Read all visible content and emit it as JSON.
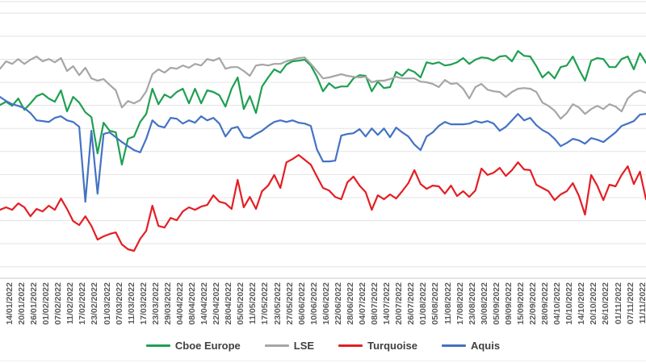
{
  "chart_data": {
    "type": "line",
    "title": "",
    "y_axis_visible": false,
    "ylim": [
      0,
      12
    ],
    "grid": "horizontal",
    "gridline_values": [
      0.5,
      1.5,
      2.5,
      3.5,
      4.5,
      5.5,
      6.5,
      7.5,
      8.5,
      9.5,
      10.5,
      11.5,
      12
    ],
    "axis_note": "y-axis labels cropped out of frame; values estimated in gridline units (1 unit per gridline above baseline)",
    "legend_position": "bottom",
    "x_labels": [
      "14/01/2022",
      "20/01/2022",
      "26/01/2022",
      "01/02/2022",
      "07/02/2022",
      "11/02/2022",
      "17/02/2022",
      "23/02/2022",
      "01/03/2022",
      "07/03/2022",
      "11/03/2022",
      "17/03/2022",
      "23/03/2022",
      "29/03/2022",
      "04/04/2022",
      "08/04/2022",
      "14/04/2022",
      "22/04/2022",
      "28/04/2022",
      "05/05/2022",
      "11/05/2022",
      "17/05/2022",
      "23/05/2022",
      "27/05/2022",
      "06/06/2022",
      "10/06/2022",
      "16/06/2022",
      "22/06/2022",
      "28/06/2022",
      "04/07/2022",
      "08/07/2022",
      "14/07/2022",
      "20/07/2022",
      "26/07/2022",
      "01/08/2022",
      "05/08/2022",
      "11/08/2022",
      "17/08/2022",
      "23/08/2022",
      "30/08/2022",
      "05/09/2022",
      "09/09/2022",
      "15/09/2022",
      "22/09/2022",
      "28/09/2022",
      "04/10/2022",
      "10/10/2022",
      "14/10/2022",
      "20/10/2022",
      "26/10/2022",
      "01/11/2022",
      "07/11/2022",
      "11/11/2022"
    ],
    "series": [
      {
        "name": "Cboe Europe",
        "color": "#1ea050",
        "values": [
          7.52,
          7.66,
          7.48,
          7.8,
          7.31,
          7.59,
          7.9,
          8.01,
          7.8,
          7.66,
          8.15,
          7.24,
          7.87,
          7.62,
          7.2,
          6.99,
          5.42,
          6.75,
          6.4,
          6.33,
          4.93,
          6.05,
          6.15,
          6.78,
          7.13,
          8.22,
          7.55,
          7.97,
          7.83,
          8.08,
          8.22,
          7.59,
          8.22,
          7.59,
          8.15,
          8.08,
          7.94,
          7.45,
          8.22,
          8.71,
          7.34,
          7.9,
          7.17,
          8.32,
          8.71,
          9.06,
          8.92,
          9.27,
          9.41,
          9.44,
          9.48,
          9.23,
          8.74,
          8.11,
          8.46,
          8.25,
          8.32,
          8.32,
          8.67,
          8.81,
          8.78,
          8.11,
          8.53,
          8.25,
          8.29,
          8.95,
          8.78,
          9.06,
          8.95,
          8.71,
          9.37,
          9.3,
          9.37,
          9.23,
          9.27,
          9.37,
          9.55,
          9.3,
          9.48,
          9.58,
          9.55,
          9.44,
          9.62,
          9.65,
          9.41,
          9.86,
          9.65,
          9.62,
          9.2,
          8.71,
          8.95,
          8.67,
          9.16,
          9.23,
          9.62,
          9.06,
          8.57,
          9.44,
          9.55,
          9.51,
          9.16,
          9.16,
          9.51,
          9.62,
          9.06,
          9.76,
          9.34
        ]
      },
      {
        "name": "LSE",
        "color": "#a6a6a6",
        "values": [
          9.09,
          9.41,
          9.3,
          9.51,
          9.3,
          9.48,
          9.62,
          9.41,
          9.51,
          9.37,
          9.55,
          8.99,
          9.2,
          8.81,
          9.13,
          8.67,
          8.57,
          8.64,
          8.39,
          8.15,
          7.41,
          7.69,
          7.59,
          7.73,
          8.11,
          8.85,
          9.06,
          8.92,
          9.13,
          9.09,
          9.23,
          9.13,
          9.3,
          9.23,
          9.51,
          9.44,
          9.55,
          9.09,
          9.16,
          9.16,
          8.99,
          8.78,
          9.23,
          9.27,
          9.23,
          9.3,
          9.3,
          9.41,
          9.48,
          9.55,
          9.58,
          9.3,
          8.99,
          8.67,
          8.71,
          8.78,
          8.85,
          8.78,
          8.74,
          8.71,
          8.74,
          8.5,
          8.57,
          8.57,
          8.64,
          8.74,
          8.67,
          8.67,
          8.67,
          8.53,
          8.5,
          8.43,
          8.29,
          8.6,
          8.43,
          8.46,
          8.22,
          7.8,
          8.29,
          8.43,
          8.18,
          8.11,
          8.08,
          7.87,
          8.08,
          8.22,
          8.25,
          8.22,
          8.08,
          7.62,
          7.48,
          7.27,
          6.92,
          7.17,
          7.55,
          7.41,
          7.13,
          7.34,
          7.48,
          7.34,
          7.55,
          7.45,
          7.24,
          7.8,
          8.04,
          8.15,
          8.04
        ]
      },
      {
        "name": "Turquoise",
        "color": "#e41e25",
        "values": [
          2.97,
          3.08,
          2.97,
          3.25,
          3.08,
          2.69,
          3.01,
          2.9,
          3.15,
          2.97,
          3.46,
          3.01,
          2.48,
          2.31,
          2.69,
          2.27,
          1.68,
          1.82,
          1.92,
          1.99,
          1.47,
          1.26,
          1.19,
          1.71,
          2.06,
          3.15,
          2.27,
          2.2,
          2.62,
          2.52,
          2.9,
          3.08,
          2.97,
          3.11,
          3.18,
          3.6,
          3.32,
          3.25,
          3.01,
          4.27,
          3.08,
          3.53,
          3.01,
          3.78,
          4.02,
          4.48,
          3.92,
          5.03,
          5.17,
          5.35,
          5.14,
          4.93,
          4.41,
          3.92,
          3.81,
          3.53,
          3.43,
          4.16,
          4.41,
          4.02,
          3.74,
          2.97,
          3.6,
          3.43,
          3.64,
          3.46,
          3.78,
          4.13,
          4.69,
          4.09,
          3.88,
          4.02,
          3.99,
          3.67,
          4.02,
          3.57,
          3.78,
          3.53,
          3.81,
          4.76,
          4.48,
          4.58,
          4.79,
          4.44,
          4.69,
          5.03,
          4.72,
          4.69,
          4.06,
          3.92,
          3.78,
          3.39,
          3.64,
          3.78,
          4.13,
          3.57,
          2.76,
          4.48,
          4.02,
          3.39,
          4.06,
          3.99,
          4.48,
          4.86,
          4.09,
          4.62,
          3.43
        ]
      },
      {
        "name": "Aquis",
        "color": "#4472c4",
        "values": [
          7.87,
          7.69,
          7.55,
          7.48,
          7.38,
          7.17,
          6.85,
          6.82,
          6.78,
          6.96,
          7.03,
          6.85,
          6.78,
          6.57,
          3.32,
          6.4,
          3.67,
          6.26,
          6.33,
          6.12,
          5.91,
          5.73,
          5.56,
          5.46,
          6.05,
          6.85,
          6.61,
          6.54,
          6.96,
          6.92,
          6.71,
          6.85,
          6.75,
          7.03,
          6.85,
          6.96,
          6.71,
          6.15,
          6.5,
          6.57,
          6.12,
          6.08,
          6.26,
          6.4,
          6.61,
          6.78,
          6.85,
          6.78,
          6.85,
          6.75,
          6.71,
          6.61,
          5.59,
          5.07,
          5.07,
          5.1,
          6.19,
          6.26,
          6.29,
          6.47,
          6.15,
          6.5,
          6.22,
          6.5,
          6.12,
          6.54,
          6.33,
          6.15,
          5.8,
          5.56,
          6.15,
          6.33,
          6.61,
          6.78,
          6.68,
          6.68,
          6.68,
          6.71,
          6.82,
          6.75,
          6.82,
          6.71,
          6.4,
          6.57,
          6.85,
          7.13,
          6.85,
          6.96,
          6.64,
          6.43,
          6.29,
          6.05,
          5.73,
          5.87,
          6.05,
          5.98,
          5.84,
          6.08,
          6.01,
          5.91,
          6.12,
          6.33,
          6.61,
          6.71,
          6.82,
          7.1,
          7.13
        ]
      }
    ],
    "style": {
      "gridline_color": "#e3e3e3",
      "axis_line_color": "#c9c9c9",
      "label_color": "#595959",
      "legend_text_color": "#404040",
      "background": "#ffffff"
    }
  }
}
